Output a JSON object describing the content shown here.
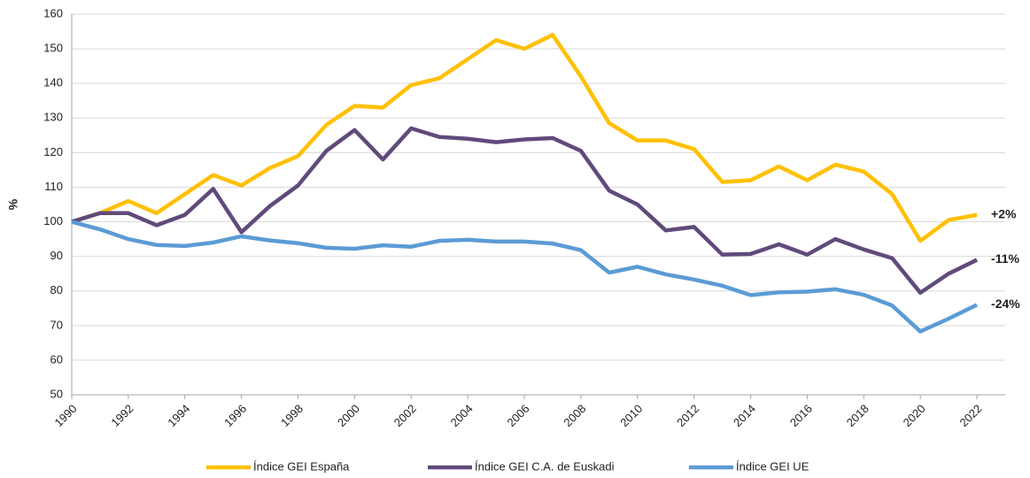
{
  "chart_data": {
    "type": "line",
    "y_label": "%",
    "x": [
      1990,
      1991,
      1992,
      1993,
      1994,
      1995,
      1996,
      1997,
      1998,
      1999,
      2000,
      2001,
      2002,
      2003,
      2004,
      2005,
      2006,
      2007,
      2008,
      2009,
      2010,
      2011,
      2012,
      2013,
      2014,
      2015,
      2016,
      2017,
      2018,
      2019,
      2020,
      2021,
      2022
    ],
    "xlim": [
      1990,
      2023
    ],
    "xticks": [
      1990,
      1992,
      1994,
      1996,
      1998,
      2000,
      2002,
      2004,
      2006,
      2008,
      2010,
      2012,
      2014,
      2016,
      2018,
      2020,
      2022
    ],
    "ylim": [
      50,
      160
    ],
    "yticks": [
      50,
      60,
      70,
      80,
      90,
      100,
      110,
      120,
      130,
      140,
      150,
      160
    ],
    "grid": true,
    "legend": "bottom",
    "series": [
      {
        "name": "Índice GEI España",
        "color": "#FFC000",
        "end_label": "+2%",
        "values": [
          100,
          102.5,
          106,
          102.5,
          108,
          113.5,
          110.5,
          115.5,
          119,
          128,
          133.5,
          133,
          139.5,
          141.5,
          147,
          152.5,
          150,
          154,
          142,
          128.5,
          123.5,
          123.5,
          121,
          111.5,
          112,
          116,
          112,
          116.5,
          114.5,
          108,
          94.5,
          100.5,
          102
        ]
      },
      {
        "name": "Índice GEI C.A. de Euskadi",
        "color": "#604A7B",
        "end_label": "-11%",
        "values": [
          100,
          102.5,
          102.5,
          99,
          102,
          109.5,
          97,
          104.5,
          110.5,
          120.5,
          126.5,
          118,
          127,
          124.5,
          124,
          123,
          123.8,
          124.2,
          120.5,
          109,
          105,
          97.5,
          98.5,
          90.5,
          90.7,
          93.5,
          90.5,
          95,
          92,
          89.5,
          79.5,
          85,
          89
        ]
      },
      {
        "name": "Índice GEI UE",
        "color": "#5B9BD5",
        "end_label": "-24%",
        "values": [
          100,
          97.8,
          95,
          93.3,
          93,
          94,
          95.8,
          94.6,
          93.8,
          92.5,
          92.2,
          93.2,
          92.8,
          94.5,
          94.8,
          94.3,
          94.3,
          93.7,
          91.8,
          85.3,
          87,
          84.8,
          83.3,
          81.5,
          78.8,
          79.6,
          79.8,
          80.5,
          78.9,
          75.8,
          68.3,
          72,
          76
        ]
      }
    ]
  }
}
